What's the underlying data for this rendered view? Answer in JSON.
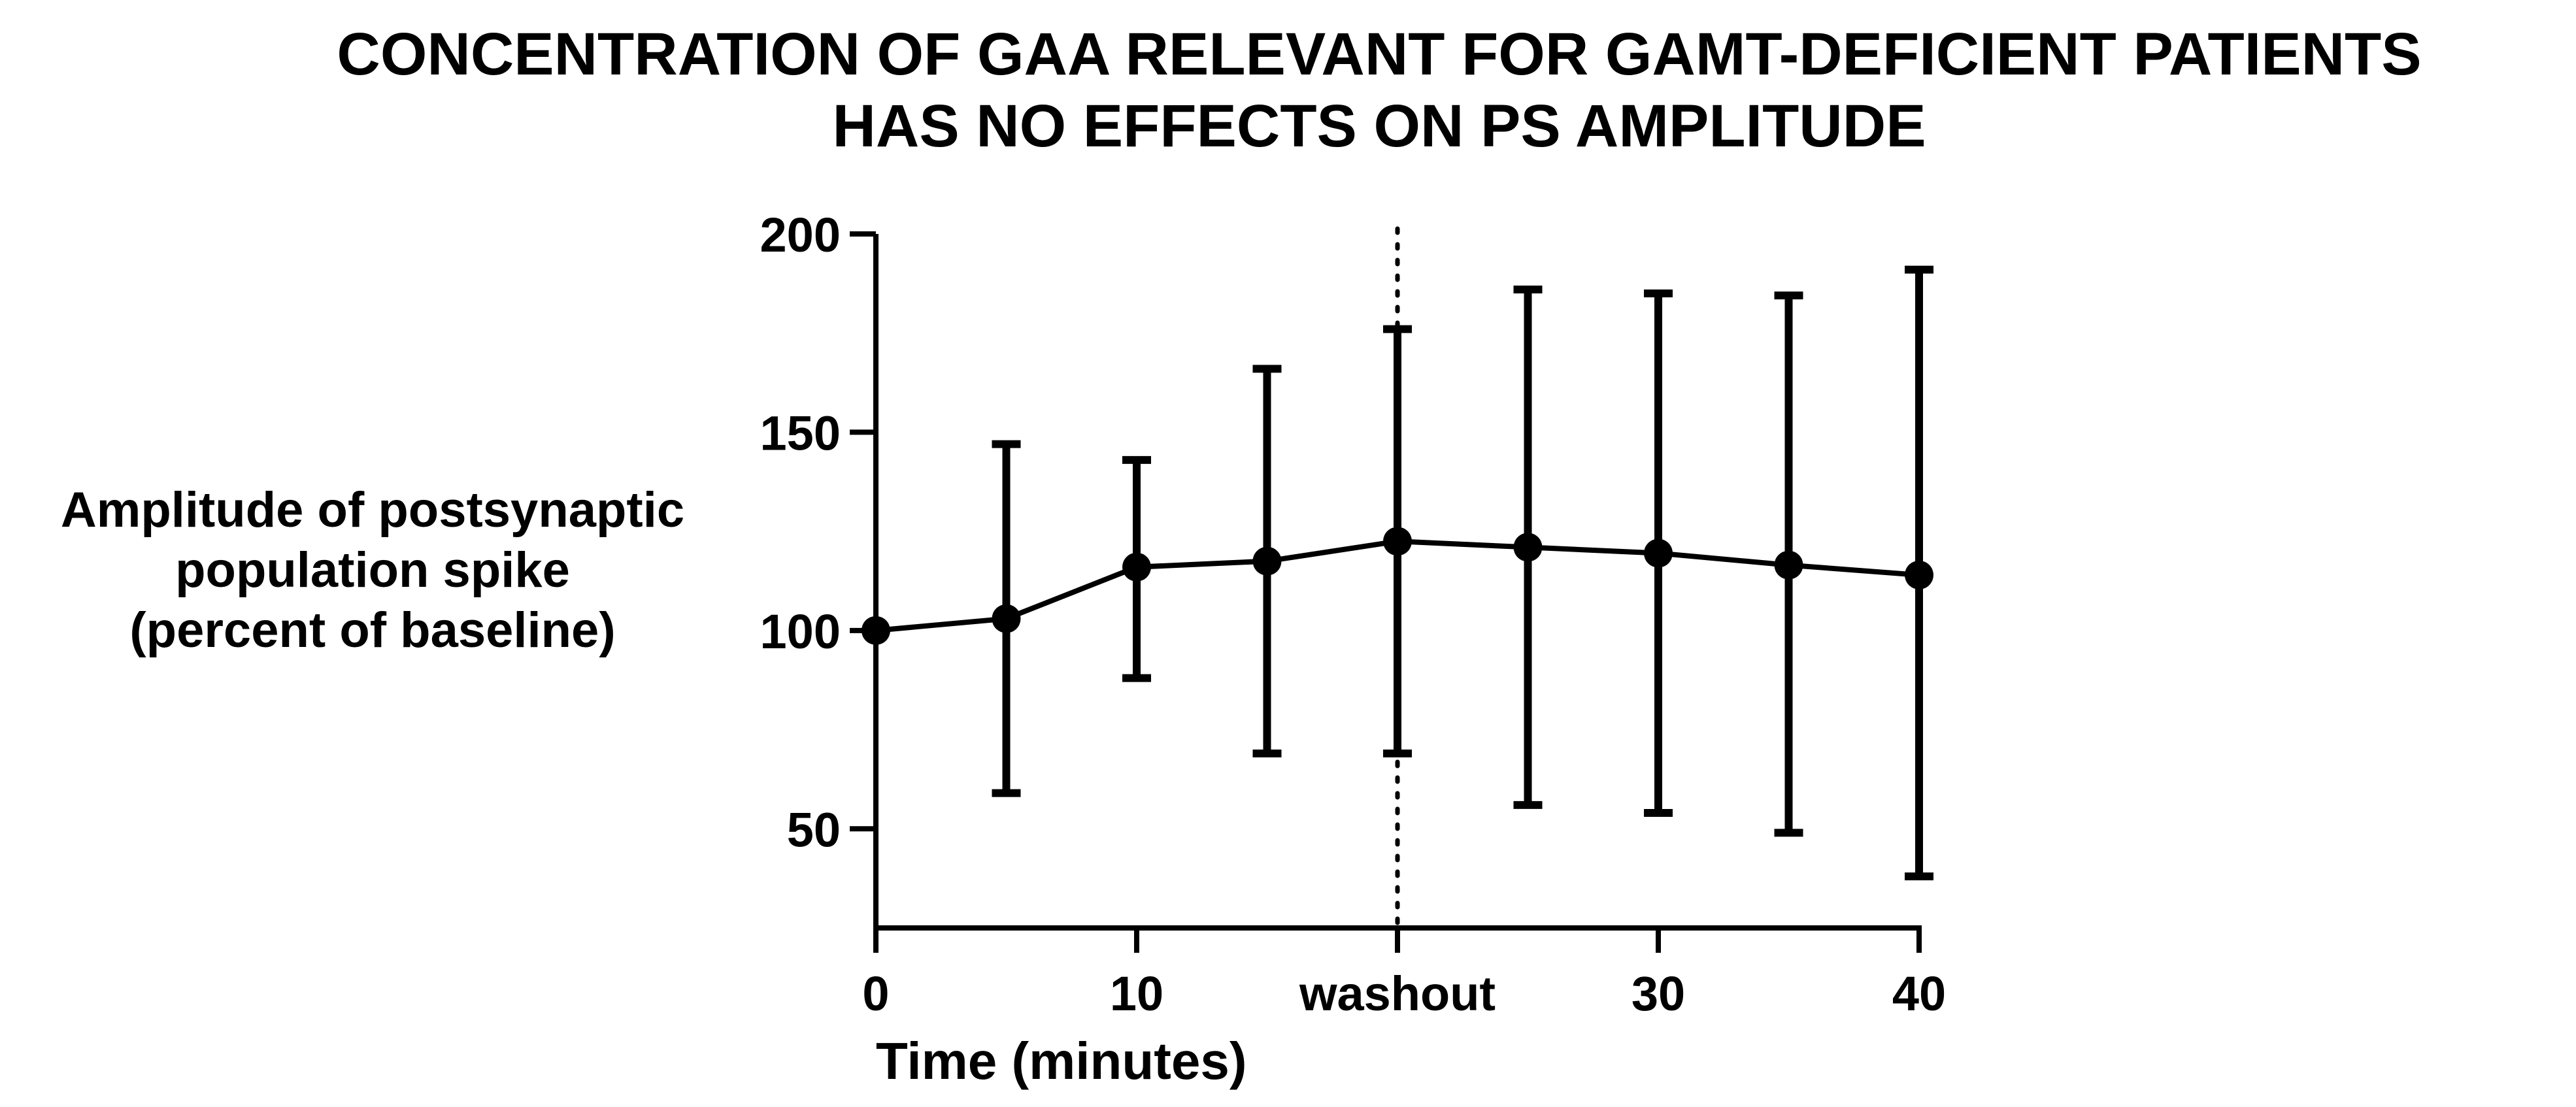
{
  "chart_data": {
    "type": "line",
    "title_lines": [
      "CONCENTRATION OF GAA RELEVANT FOR GAMT-DEFICIENT PATIENTS",
      "HAS NO EFFECTS ON PS AMPLITUDE"
    ],
    "xlabel": "Time (minutes)",
    "ylabel_lines": [
      "Amplitude of postsynaptic",
      "population spike",
      "(percent of baseline)"
    ],
    "xlim": [
      0,
      40
    ],
    "ylim": [
      25,
      200
    ],
    "x_ticks": [
      {
        "value": 0,
        "label": "0"
      },
      {
        "value": 10,
        "label": "10"
      },
      {
        "value": 20,
        "label": "washout"
      },
      {
        "value": 30,
        "label": "30"
      },
      {
        "value": 40,
        "label": "40"
      }
    ],
    "y_ticks": [
      {
        "value": 50,
        "label": "50"
      },
      {
        "value": 100,
        "label": "100"
      },
      {
        "value": 150,
        "label": "150"
      },
      {
        "value": 200,
        "label": "200"
      }
    ],
    "reference_line": {
      "x": 20,
      "style": "dotted"
    },
    "grid": false,
    "series": [
      {
        "color": "#000000",
        "points": [
          {
            "x": 0,
            "y": 100,
            "err_low": 100,
            "err_high": 100
          },
          {
            "x": 5,
            "y": 103,
            "err_low": 59,
            "err_high": 147
          },
          {
            "x": 10,
            "y": 116,
            "err_low": 88,
            "err_high": 143
          },
          {
            "x": 15,
            "y": 117.5,
            "err_low": 69,
            "err_high": 166
          },
          {
            "x": 20,
            "y": 122.5,
            "err_low": 69,
            "err_high": 176
          },
          {
            "x": 25,
            "y": 121,
            "err_low": 56,
            "err_high": 186
          },
          {
            "x": 30,
            "y": 119.5,
            "err_low": 54,
            "err_high": 185
          },
          {
            "x": 35,
            "y": 116.5,
            "err_low": 49,
            "err_high": 184.5
          },
          {
            "x": 40,
            "y": 114,
            "err_low": 38,
            "err_high": 191
          }
        ]
      }
    ]
  }
}
